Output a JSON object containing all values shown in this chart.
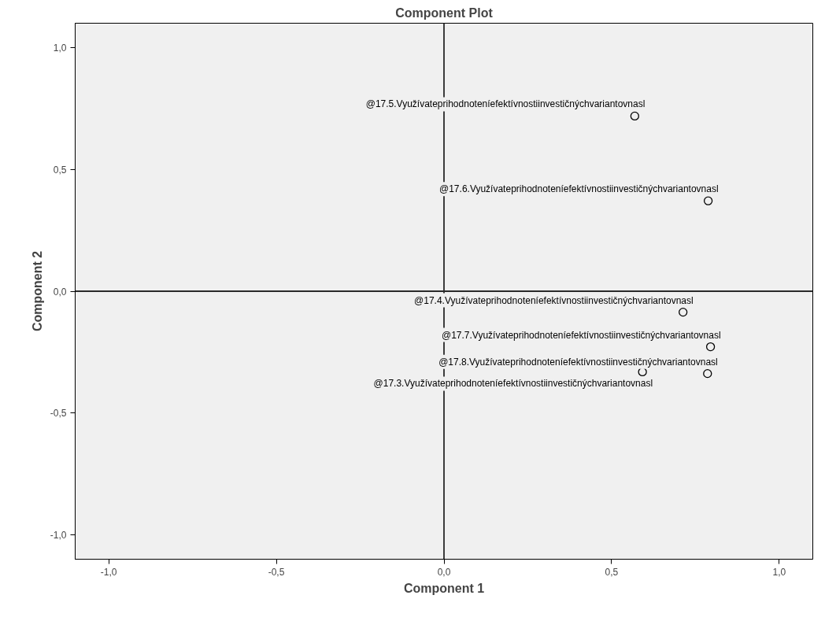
{
  "chart_data": {
    "type": "scatter",
    "title": "Component Plot",
    "xlabel": "Component 1",
    "ylabel": "Component 2",
    "x": [
      0.569,
      0.788,
      0.713,
      0.795,
      0.786,
      0.592
    ],
    "series": [
      {
        "color": "#000000",
        "values": [
          0.719,
          0.371,
          -0.086,
          -0.228,
          -0.338,
          -0.331
        ]
      }
    ],
    "marker": "circle",
    "annotations": [
      {
        "text": "@17.5.Využívateprihodnoteníefektívnostiinvestičnýchvariantovnasl",
        "x": 0.569,
        "y": 0.719
      },
      {
        "text": "@17.6.Využívateprihodnoteníefektívnostiinvestičnýchvariantovnasl",
        "x": 0.788,
        "y": 0.371
      },
      {
        "text": "@17.4.Využívateprihodnoteníefektívnostiinvestičnýchvariantovnasl",
        "x": 0.713,
        "y": -0.086
      },
      {
        "text": "@17.7.Využívateprihodnoteníefektívnostiinvestičnýchvariantovnasl",
        "x": 0.795,
        "y": -0.228
      },
      {
        "text": "@17.8.Využívateprihodnoteníefektívnostiinvestičnýchvariantovnasl",
        "x": 0.786,
        "y": -0.338
      },
      {
        "text": "@17.3.Využívateprihodnoteníefektívnostiinvestičnýchvariantovnasl",
        "x": 0.592,
        "y": -0.331
      }
    ],
    "xlim": [
      -1.1,
      1.1
    ],
    "ylim": [
      -1.1,
      1.1
    ],
    "xticks": [
      {
        "value": -1,
        "label": "-1,0"
      },
      {
        "value": -0.5,
        "label": "-0,5"
      },
      {
        "value": 0,
        "label": "0,0"
      },
      {
        "value": 0.5,
        "label": "0,5"
      },
      {
        "value": 1,
        "label": "1,0"
      }
    ],
    "yticks": [
      {
        "value": -1,
        "label": "-1,0"
      },
      {
        "value": -0.5,
        "label": "-0,5"
      },
      {
        "value": 0,
        "label": "0,0"
      },
      {
        "value": 0.5,
        "label": "0,5"
      },
      {
        "value": 1,
        "label": "1,0"
      }
    ],
    "ref_lines": [
      {
        "axis": "x",
        "value": 0,
        "color": "#3c3c3c"
      },
      {
        "axis": "y",
        "value": 0,
        "color": "#2a2a2a"
      }
    ],
    "grid": false
  }
}
